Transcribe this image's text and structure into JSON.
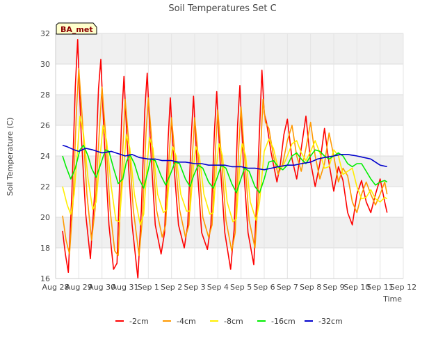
{
  "chart_data": {
    "type": "line",
    "title": "Soil Temperatures Set C",
    "xlabel": "Time",
    "ylabel": "Soil Temperature (C)",
    "ylim": [
      16,
      32
    ],
    "yticks": [
      16,
      18,
      20,
      22,
      24,
      26,
      28,
      30,
      32
    ],
    "xlim": [
      0,
      15
    ],
    "xticks": [
      0,
      1,
      2,
      3,
      4,
      5,
      6,
      7,
      8,
      9,
      10,
      11,
      12,
      13,
      14,
      15
    ],
    "xtick_labels": [
      "Aug 28",
      "Aug 29",
      "Aug 30",
      "Aug 31",
      "Sep 1",
      "Sep 2",
      "Sep 3",
      "Sep 4",
      "Sep 5",
      "Sep 6",
      "Sep 7",
      "Sep 8",
      "Sep 9",
      "Sep 10",
      "Sep 11",
      "Sep 12"
    ],
    "x_unit": "days since Aug 28",
    "grid": true,
    "legend_position": "bottom",
    "badge": "BA_met",
    "series": [
      {
        "name": "-2cm",
        "color": "#ff0000",
        "x": [
          0.3,
          0.42,
          0.55,
          0.7,
          0.85,
          0.95,
          1.1,
          1.3,
          1.5,
          1.68,
          1.85,
          1.95,
          2.1,
          2.3,
          2.5,
          2.65,
          2.85,
          2.95,
          3.1,
          3.3,
          3.55,
          3.7,
          3.85,
          3.95,
          4.1,
          4.3,
          4.55,
          4.7,
          4.85,
          4.95,
          5.1,
          5.3,
          5.55,
          5.7,
          5.85,
          5.95,
          6.1,
          6.3,
          6.55,
          6.7,
          6.85,
          6.95,
          7.1,
          7.3,
          7.55,
          7.7,
          7.85,
          7.95,
          8.1,
          8.3,
          8.55,
          8.7,
          8.9,
          9.0,
          9.1,
          9.3,
          9.55,
          9.7,
          9.85,
          10.0,
          10.2,
          10.4,
          10.6,
          10.8,
          11.0,
          11.2,
          11.4,
          11.6,
          11.8,
          12.0,
          12.2,
          12.4,
          12.6,
          12.8,
          13.0,
          13.2,
          13.4,
          13.6,
          13.8,
          14.0,
          14.2,
          14.3
        ],
        "values": [
          19.1,
          17.6,
          16.4,
          21.5,
          28.5,
          31.6,
          25.5,
          20.2,
          17.3,
          21.5,
          28.4,
          30.3,
          25.0,
          19.5,
          16.6,
          17.0,
          26.5,
          29.2,
          24.5,
          19.5,
          16.0,
          20.5,
          27.0,
          29.4,
          24.5,
          19.5,
          17.6,
          19.0,
          25.0,
          27.8,
          23.5,
          19.5,
          18.0,
          19.5,
          25.2,
          27.9,
          23.5,
          19.0,
          17.9,
          19.5,
          25.5,
          28.2,
          23.5,
          19.0,
          16.6,
          19.2,
          26.0,
          28.6,
          23.5,
          19.0,
          16.9,
          22.0,
          29.6,
          26.8,
          26.2,
          24.2,
          22.3,
          23.5,
          25.4,
          26.4,
          23.8,
          22.5,
          24.5,
          26.6,
          23.6,
          22.0,
          23.5,
          25.8,
          23.5,
          21.7,
          23.3,
          22.4,
          20.3,
          19.5,
          21.5,
          22.4,
          21.0,
          20.3,
          21.5,
          22.5,
          21.0,
          20.3
        ]
      },
      {
        "name": "-4cm",
        "color": "#ff9900",
        "x": [
          0.3,
          0.45,
          0.6,
          0.75,
          0.9,
          1.0,
          1.15,
          1.35,
          1.55,
          1.7,
          1.9,
          2.0,
          2.15,
          2.35,
          2.55,
          2.7,
          2.9,
          3.0,
          3.15,
          3.35,
          3.6,
          3.75,
          3.9,
          4.0,
          4.15,
          4.35,
          4.6,
          4.75,
          4.9,
          5.0,
          5.15,
          5.35,
          5.6,
          5.75,
          5.9,
          6.0,
          6.15,
          6.35,
          6.6,
          6.75,
          6.9,
          7.0,
          7.15,
          7.35,
          7.6,
          7.75,
          7.9,
          8.0,
          8.15,
          8.35,
          8.6,
          8.75,
          8.95,
          9.05,
          9.2,
          9.4,
          9.6,
          9.8,
          10.0,
          10.2,
          10.4,
          10.6,
          10.8,
          11.0,
          11.2,
          11.4,
          11.6,
          11.8,
          12.0,
          12.2,
          12.4,
          12.6,
          12.8,
          13.0,
          13.2,
          13.4,
          13.6,
          13.8,
          14.0,
          14.2,
          14.3
        ],
        "values": [
          20.1,
          18.5,
          17.6,
          21.0,
          27.0,
          29.7,
          26.5,
          21.5,
          18.5,
          20.5,
          26.0,
          28.5,
          25.5,
          20.5,
          17.8,
          17.5,
          24.5,
          27.7,
          25.0,
          20.5,
          17.5,
          20.0,
          25.5,
          27.8,
          25.0,
          20.5,
          18.7,
          19.5,
          24.0,
          26.5,
          24.0,
          20.5,
          18.7,
          19.5,
          24.0,
          26.5,
          24.0,
          20.0,
          18.7,
          19.5,
          24.5,
          27.0,
          24.0,
          19.8,
          17.8,
          19.0,
          24.5,
          27.2,
          24.0,
          19.8,
          18.0,
          21.5,
          27.7,
          26.2,
          25.8,
          24.0,
          22.8,
          23.5,
          25.0,
          26.0,
          24.0,
          23.0,
          24.5,
          26.2,
          24.0,
          22.5,
          23.5,
          25.5,
          24.0,
          22.3,
          23.2,
          22.7,
          21.0,
          20.3,
          21.5,
          22.3,
          21.5,
          20.8,
          21.5,
          22.3,
          21.5
        ]
      },
      {
        "name": "-8cm",
        "color": "#ffee00",
        "x": [
          0.3,
          0.5,
          0.65,
          0.8,
          0.95,
          1.05,
          1.2,
          1.4,
          1.6,
          1.75,
          1.95,
          2.05,
          2.2,
          2.4,
          2.6,
          2.75,
          2.95,
          3.05,
          3.2,
          3.4,
          3.65,
          3.8,
          3.95,
          4.05,
          4.2,
          4.4,
          4.65,
          4.8,
          4.95,
          5.05,
          5.2,
          5.4,
          5.65,
          5.8,
          5.95,
          6.05,
          6.2,
          6.4,
          6.65,
          6.8,
          6.95,
          7.05,
          7.2,
          7.4,
          7.65,
          7.8,
          7.95,
          8.05,
          8.2,
          8.4,
          8.65,
          8.8,
          9.0,
          9.2,
          9.4,
          9.6,
          9.8,
          10.0,
          10.2,
          10.4,
          10.6,
          10.8,
          11.0,
          11.2,
          11.4,
          11.6,
          11.8,
          12.0,
          12.2,
          12.4,
          12.6,
          12.8,
          13.0,
          13.2,
          13.4,
          13.6,
          13.8,
          14.0,
          14.2,
          14.3
        ],
        "values": [
          22.0,
          20.8,
          20.2,
          21.5,
          24.5,
          26.6,
          25.5,
          22.5,
          20.5,
          21.0,
          24.5,
          26.0,
          25.0,
          22.0,
          19.8,
          19.7,
          23.5,
          25.4,
          24.5,
          21.5,
          19.5,
          20.2,
          23.5,
          25.2,
          24.5,
          21.5,
          20.3,
          20.5,
          23.5,
          24.6,
          24.0,
          21.5,
          20.4,
          20.4,
          23.3,
          24.6,
          24.0,
          21.5,
          20.2,
          20.3,
          23.5,
          24.8,
          24.0,
          21.0,
          19.7,
          19.9,
          23.5,
          24.8,
          24.0,
          21.0,
          19.8,
          21.0,
          24.3,
          25.1,
          24.5,
          23.2,
          23.3,
          24.0,
          24.8,
          25.0,
          24.2,
          23.7,
          24.3,
          25.0,
          24.2,
          23.2,
          23.3,
          24.4,
          24.0,
          22.8,
          23.0,
          23.2,
          22.0,
          21.2,
          21.3,
          21.8,
          21.2,
          21.0,
          21.3,
          21.2
        ]
      },
      {
        "name": "-16cm",
        "color": "#00ee00",
        "x": [
          0.3,
          0.45,
          0.65,
          0.85,
          1.05,
          1.2,
          1.4,
          1.55,
          1.75,
          1.95,
          2.15,
          2.3,
          2.5,
          2.7,
          2.9,
          3.05,
          3.2,
          3.4,
          3.6,
          3.8,
          3.95,
          4.1,
          4.3,
          4.55,
          4.75,
          4.95,
          5.15,
          5.35,
          5.6,
          5.8,
          5.95,
          6.15,
          6.35,
          6.6,
          6.8,
          6.95,
          7.15,
          7.35,
          7.6,
          7.8,
          7.95,
          8.15,
          8.35,
          8.6,
          8.8,
          9.0,
          9.2,
          9.4,
          9.6,
          9.8,
          10.0,
          10.2,
          10.4,
          10.6,
          10.8,
          11.0,
          11.2,
          11.4,
          11.6,
          11.8,
          12.0,
          12.2,
          12.4,
          12.6,
          12.8,
          13.0,
          13.2,
          13.4,
          13.6,
          13.8,
          14.0,
          14.2,
          14.3
        ],
        "values": [
          24.0,
          23.3,
          22.5,
          23.2,
          24.4,
          24.7,
          24.0,
          23.2,
          22.6,
          23.5,
          24.4,
          24.3,
          23.2,
          22.2,
          22.5,
          23.6,
          24.1,
          23.5,
          22.5,
          21.9,
          22.8,
          23.8,
          23.7,
          22.7,
          22.1,
          22.8,
          23.6,
          23.5,
          22.5,
          22.0,
          22.7,
          23.4,
          23.2,
          22.3,
          21.9,
          22.5,
          23.4,
          23.2,
          22.2,
          21.6,
          22.3,
          23.2,
          23.0,
          22.0,
          21.6,
          22.5,
          23.6,
          23.7,
          23.3,
          23.1,
          23.4,
          24.0,
          24.2,
          23.8,
          23.5,
          24.0,
          24.4,
          24.3,
          24.0,
          23.8,
          24.0,
          24.2,
          24.0,
          23.5,
          23.3,
          23.5,
          23.5,
          23.0,
          22.5,
          22.1,
          22.3,
          22.4,
          22.3
        ]
      },
      {
        "name": "-32cm",
        "color": "#0000cc",
        "x": [
          0.3,
          0.5,
          0.8,
          1.0,
          1.3,
          1.6,
          2.0,
          2.4,
          2.8,
          3.0,
          3.3,
          3.6,
          4.0,
          4.3,
          4.6,
          5.0,
          5.3,
          5.6,
          6.0,
          6.3,
          6.6,
          7.0,
          7.3,
          7.6,
          8.0,
          8.3,
          8.6,
          9.0,
          9.3,
          9.6,
          10.0,
          10.3,
          10.6,
          11.0,
          11.3,
          11.6,
          12.0,
          12.3,
          12.6,
          13.0,
          13.3,
          13.6,
          14.0,
          14.3
        ],
        "values": [
          24.7,
          24.6,
          24.4,
          24.3,
          24.5,
          24.4,
          24.2,
          24.3,
          24.1,
          24.0,
          24.1,
          23.9,
          23.8,
          23.8,
          23.7,
          23.7,
          23.6,
          23.6,
          23.5,
          23.5,
          23.4,
          23.4,
          23.4,
          23.3,
          23.3,
          23.2,
          23.2,
          23.1,
          23.2,
          23.3,
          23.4,
          23.4,
          23.5,
          23.6,
          23.8,
          23.9,
          24.0,
          24.1,
          24.1,
          24.0,
          23.9,
          23.8,
          23.4,
          23.3
        ]
      }
    ]
  }
}
